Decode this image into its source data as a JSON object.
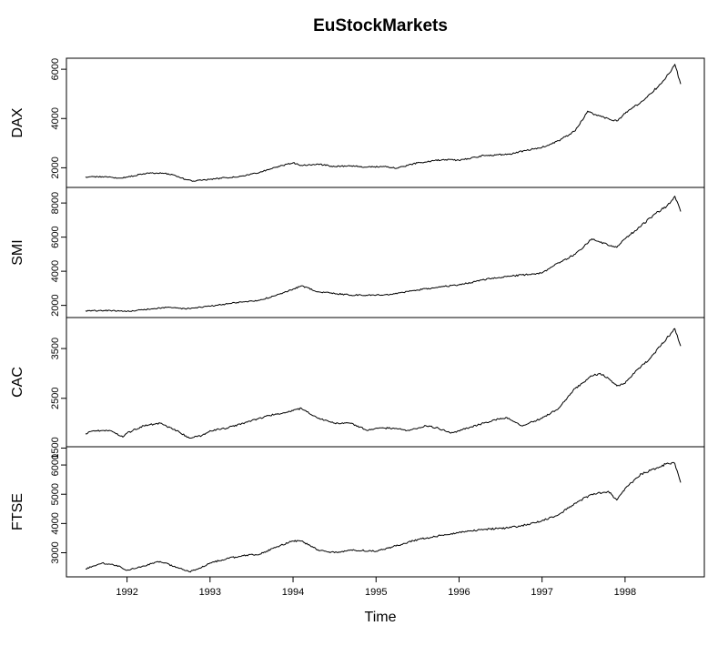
{
  "chart_data": {
    "type": "line",
    "title": "EuStockMarkets",
    "xlabel": "Time",
    "xlim": [
      1991.5,
      1998.67
    ],
    "x_ticks": [
      1992,
      1993,
      1994,
      1995,
      1996,
      1997,
      1998
    ],
    "x_tick_labels": [
      "1992",
      "1993",
      "1994",
      "1995",
      "1996",
      "1997",
      "1998"
    ],
    "grid": false,
    "legend": "none",
    "line_color": "#000000",
    "panels": [
      {
        "name": "DAX",
        "ylabel": "DAX",
        "ylim": [
          1350,
          6300
        ],
        "y_ticks": [
          2000,
          4000,
          6000
        ],
        "y_tick_labels": [
          "2000",
          "4000",
          "6000"
        ],
        "x": [
          1991.5,
          1991.7,
          1991.9,
          1992.0,
          1992.2,
          1992.4,
          1992.55,
          1992.7,
          1992.8,
          1993.0,
          1993.2,
          1993.4,
          1993.6,
          1993.8,
          1994.0,
          1994.1,
          1994.3,
          1994.5,
          1994.7,
          1994.9,
          1995.1,
          1995.25,
          1995.5,
          1995.8,
          1996.0,
          1996.3,
          1996.6,
          1996.8,
          1997.0,
          1997.2,
          1997.4,
          1997.55,
          1997.65,
          1997.8,
          1997.9,
          1998.0,
          1998.2,
          1998.4,
          1998.55,
          1998.6,
          1998.67
        ],
        "values": [
          1630,
          1640,
          1580,
          1620,
          1760,
          1800,
          1720,
          1530,
          1460,
          1530,
          1600,
          1670,
          1820,
          2030,
          2200,
          2100,
          2150,
          2050,
          2080,
          2030,
          2050,
          1980,
          2200,
          2330,
          2300,
          2500,
          2550,
          2700,
          2830,
          3100,
          3500,
          4300,
          4150,
          4000,
          3900,
          4200,
          4700,
          5300,
          5900,
          6200,
          5400
        ]
      },
      {
        "name": "SMI",
        "ylabel": "SMI",
        "ylim": [
          1500,
          8700
        ],
        "y_ticks": [
          2000,
          4000,
          6000,
          8000
        ],
        "y_tick_labels": [
          "2000",
          "4000",
          "6000",
          "8000"
        ],
        "x": [
          1991.5,
          1991.8,
          1992.0,
          1992.3,
          1992.5,
          1992.7,
          1993.0,
          1993.3,
          1993.6,
          1993.8,
          1994.0,
          1994.1,
          1994.3,
          1994.5,
          1994.7,
          1995.0,
          1995.2,
          1995.5,
          1995.8,
          1996.0,
          1996.2,
          1996.4,
          1996.6,
          1996.8,
          1997.0,
          1997.2,
          1997.4,
          1997.6,
          1997.7,
          1997.9,
          1998.0,
          1998.2,
          1998.4,
          1998.5,
          1998.6,
          1998.67
        ],
        "values": [
          1680,
          1700,
          1650,
          1800,
          1900,
          1800,
          1950,
          2150,
          2300,
          2600,
          2950,
          3150,
          2800,
          2700,
          2600,
          2600,
          2650,
          2900,
          3100,
          3200,
          3400,
          3600,
          3700,
          3800,
          3900,
          4500,
          5000,
          5900,
          5700,
          5400,
          5900,
          6700,
          7500,
          7800,
          8400,
          7500
        ]
      },
      {
        "name": "CAC",
        "ylabel": "CAC",
        "ylim": [
          1600,
          4050
        ],
        "y_ticks": [
          1500,
          2500,
          3500
        ],
        "y_tick_labels": [
          "1500",
          "2500",
          "3500"
        ],
        "x": [
          1991.5,
          1991.6,
          1991.8,
          1991.95,
          1992.0,
          1992.2,
          1992.4,
          1992.6,
          1992.75,
          1992.9,
          1993.0,
          1993.2,
          1993.5,
          1993.7,
          1994.0,
          1994.1,
          1994.3,
          1994.5,
          1994.7,
          1994.9,
          1995.0,
          1995.2,
          1995.4,
          1995.6,
          1995.75,
          1995.9,
          1996.1,
          1996.3,
          1996.5,
          1996.6,
          1996.75,
          1997.0,
          1997.2,
          1997.4,
          1997.6,
          1997.7,
          1997.8,
          1997.9,
          1998.0,
          1998.1,
          1998.3,
          1998.5,
          1998.6,
          1998.67
        ],
        "values": [
          1790,
          1850,
          1850,
          1720,
          1800,
          1950,
          2000,
          1850,
          1700,
          1750,
          1850,
          1900,
          2050,
          2150,
          2250,
          2300,
          2100,
          2000,
          2000,
          1850,
          1900,
          1900,
          1850,
          1950,
          1900,
          1800,
          1900,
          2000,
          2100,
          2100,
          1950,
          2100,
          2300,
          2700,
          2950,
          3000,
          2900,
          2750,
          2800,
          3000,
          3300,
          3700,
          3900,
          3550
        ]
      },
      {
        "name": "FTSE",
        "ylabel": "FTSE",
        "ylim": [
          2300,
          6500
        ],
        "y_ticks": [
          3000,
          4000,
          5000,
          6000
        ],
        "y_tick_labels": [
          "3000",
          "4000",
          "5000",
          "6000"
        ],
        "x": [
          1991.5,
          1991.7,
          1991.9,
          1992.0,
          1992.2,
          1992.4,
          1992.6,
          1992.75,
          1992.9,
          1993.0,
          1993.2,
          1993.4,
          1993.6,
          1993.8,
          1994.0,
          1994.1,
          1994.3,
          1994.5,
          1994.7,
          1995.0,
          1995.2,
          1995.5,
          1995.8,
          1996.0,
          1996.3,
          1996.6,
          1996.8,
          1997.0,
          1997.2,
          1997.4,
          1997.6,
          1997.8,
          1997.9,
          1998.0,
          1998.2,
          1998.4,
          1998.5,
          1998.6,
          1998.67
        ],
        "values": [
          2450,
          2650,
          2550,
          2400,
          2550,
          2700,
          2500,
          2350,
          2500,
          2650,
          2800,
          2900,
          2950,
          3200,
          3400,
          3400,
          3100,
          3000,
          3100,
          3050,
          3200,
          3450,
          3600,
          3700,
          3800,
          3850,
          3950,
          4100,
          4300,
          4700,
          5000,
          5100,
          4800,
          5200,
          5700,
          5900,
          6050,
          6050,
          5400
        ]
      }
    ]
  }
}
